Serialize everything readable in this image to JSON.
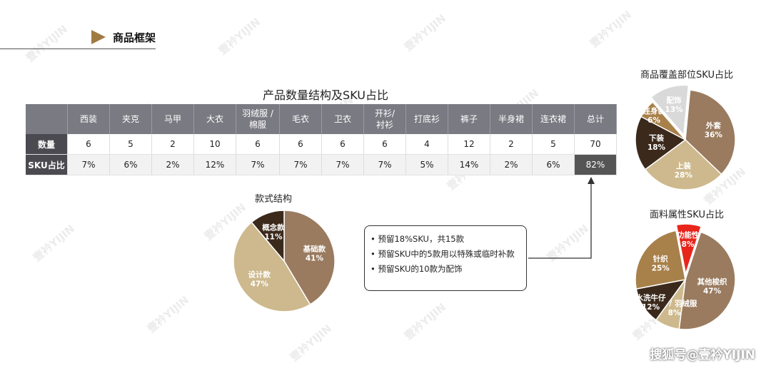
{
  "header": {
    "title": "商品框架"
  },
  "watermark": "壹衿YIJIN",
  "footer": {
    "credit": "搜狐号@壹衿YIJIN"
  },
  "colors": {
    "accent": "#a07a43",
    "header_bg": "#7a7a82",
    "rowhead_bg": "#4a4a50"
  },
  "chart_data": [
    {
      "type": "table",
      "title": "产品数量结构及SKU占比",
      "columns": [
        "西装",
        "夹克",
        "马甲",
        "大衣",
        "羽绒服 / 棉服",
        "毛衣",
        "卫衣",
        "开衫/ 衬衫",
        "打底衫",
        "裤子",
        "半身裙",
        "连衣裙",
        "总计"
      ],
      "rows": [
        {
          "label": "数量",
          "values": [
            "6",
            "5",
            "2",
            "10",
            "6",
            "6",
            "6",
            "6",
            "4",
            "12",
            "2",
            "5",
            "70"
          ]
        },
        {
          "label": "SKU占比",
          "values": [
            "7%",
            "6%",
            "2%",
            "12%",
            "7%",
            "7%",
            "7%",
            "7%",
            "5%",
            "14%",
            "2%",
            "6%",
            "82%"
          ]
        }
      ]
    },
    {
      "type": "pie",
      "title": "款式结构",
      "slices": [
        {
          "label": "基础款",
          "value": 41,
          "color": "#9a7b5f"
        },
        {
          "label": "设计款",
          "value": 47,
          "color": "#cdb98d"
        },
        {
          "label": "概念款",
          "value": 11,
          "color": "#3b2a1c"
        }
      ]
    },
    {
      "type": "pie",
      "title": "商品覆盖部位SKU占比",
      "slices": [
        {
          "label": "外套",
          "value": 36,
          "color": "#9a7b5f"
        },
        {
          "label": "上装",
          "value": 28,
          "color": "#cdb98d"
        },
        {
          "label": "下装",
          "value": 18,
          "color": "#3b2a1c"
        },
        {
          "label": "连身装",
          "value": 6,
          "color": "#a8804a"
        },
        {
          "label": "配饰",
          "value": 13,
          "color": "#d9d9d9"
        }
      ]
    },
    {
      "type": "pie",
      "title": "面料属性SKU占比",
      "slices": [
        {
          "label": "其他梭织",
          "value": 47,
          "color": "#9a7b5f"
        },
        {
          "label": "棉服 / 羽绒服",
          "value": 8,
          "color": "#cdb98d"
        },
        {
          "label": "水洗牛仔",
          "value": 12,
          "color": "#3b2a1c"
        },
        {
          "label": "针织",
          "value": 25,
          "color": "#a8804a"
        },
        {
          "label": "功能性",
          "value": 8,
          "color": "#e8251b"
        }
      ]
    }
  ],
  "notes": [
    "预留18%SKU，共15款",
    "预留SKU中的5款用以特殊或临时补款",
    "预留SKU的10款为配饰"
  ]
}
